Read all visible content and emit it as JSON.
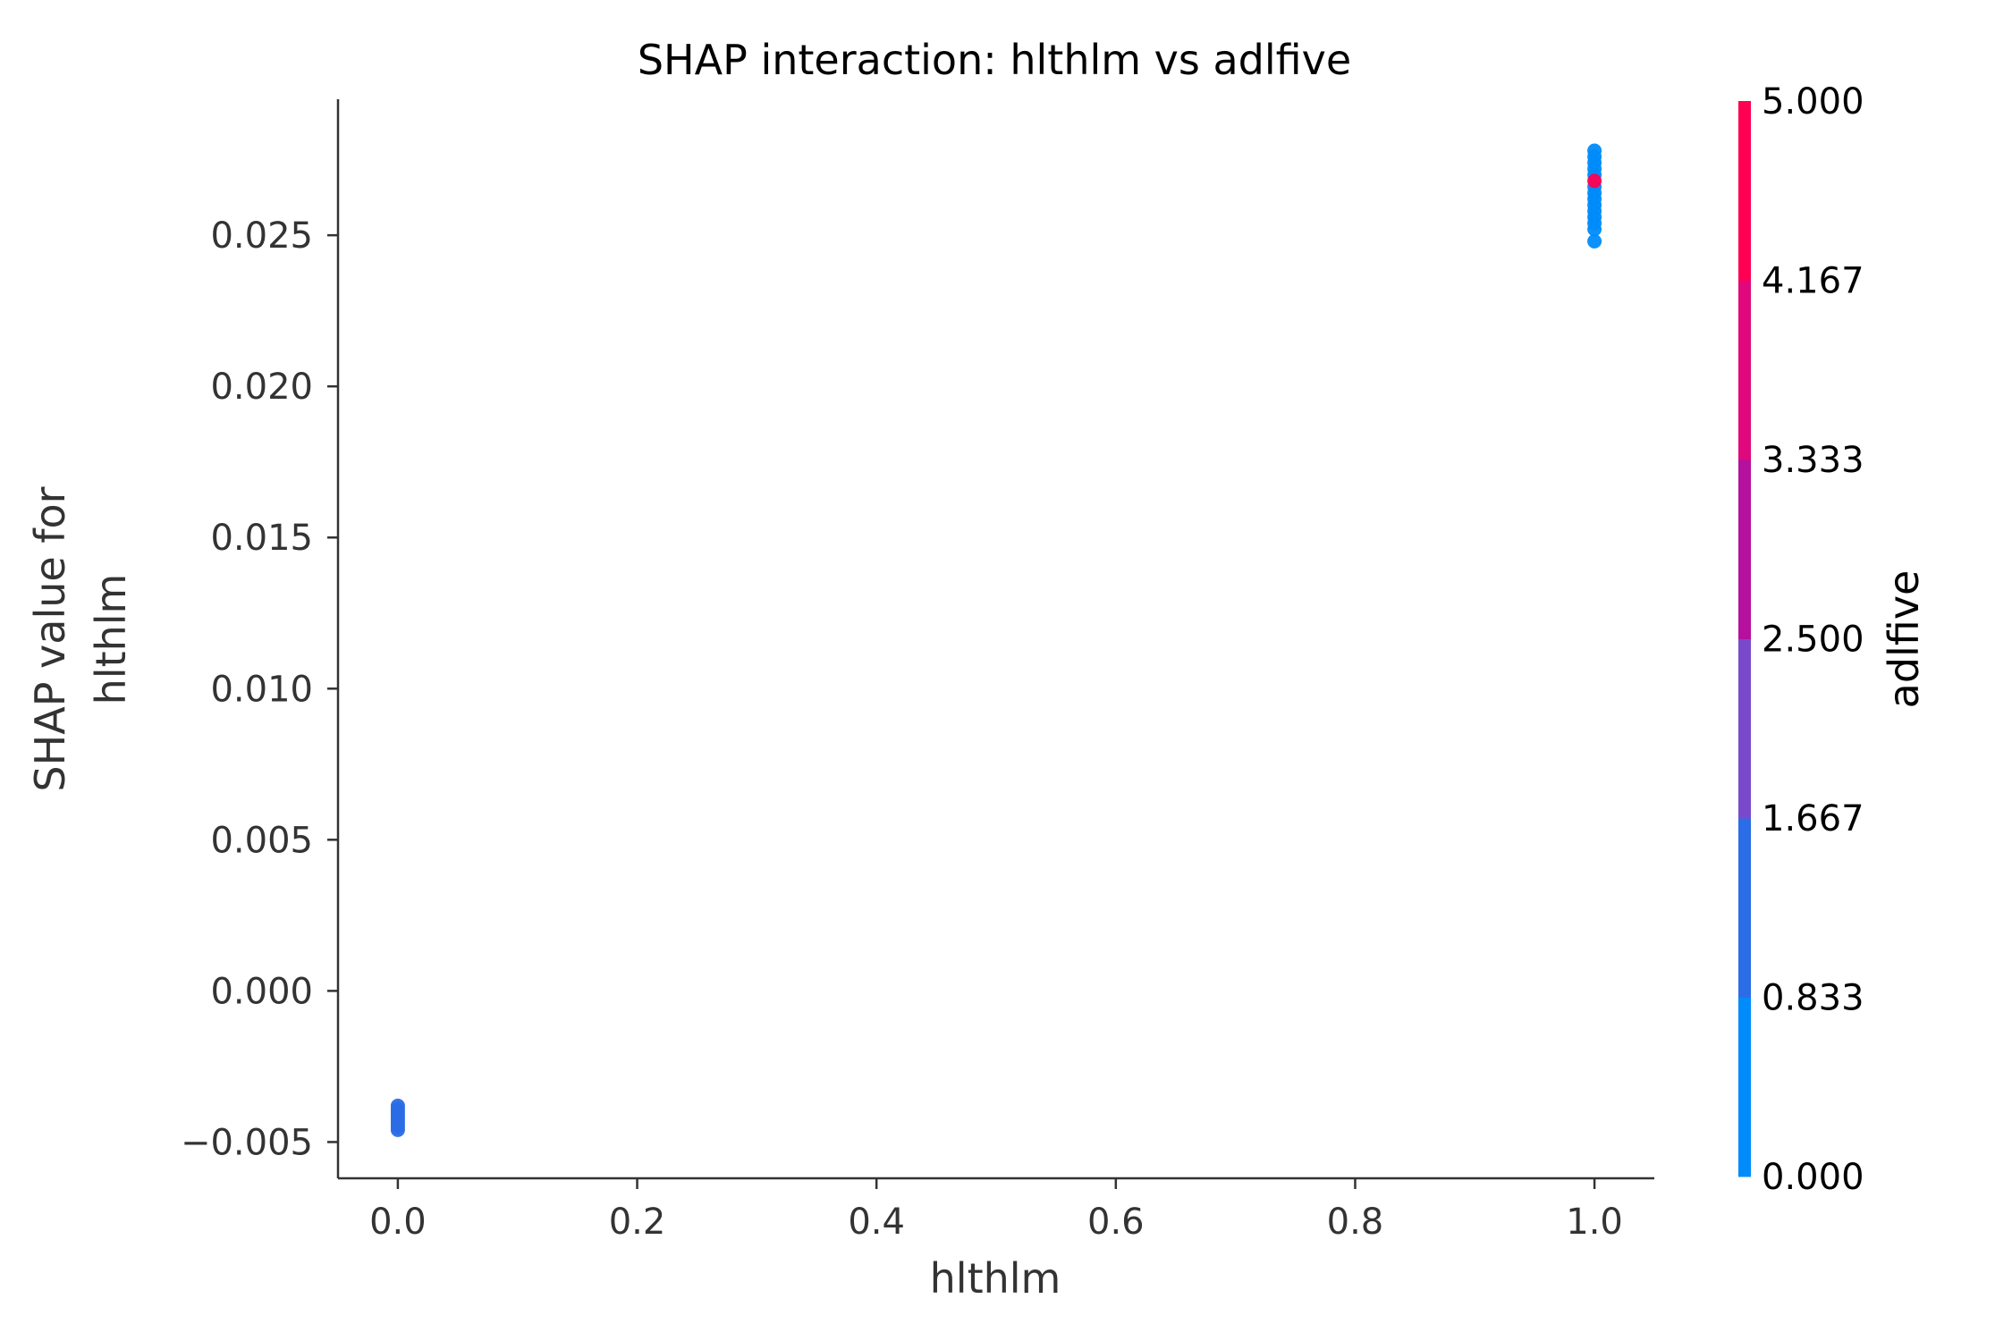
{
  "chart_data": {
    "type": "scatter",
    "title": "SHAP interaction: hlthlm vs adlfive",
    "xlabel": "hlthlm",
    "ylabel_lines": [
      "SHAP value for",
      "hlthlm"
    ],
    "xlim": [
      -0.05,
      1.05
    ],
    "ylim": [
      -0.0062,
      0.0295
    ],
    "xticks": [
      {
        "value": 0.0,
        "label": "0.0"
      },
      {
        "value": 0.2,
        "label": "0.2"
      },
      {
        "value": 0.4,
        "label": "0.4"
      },
      {
        "value": 0.6,
        "label": "0.6"
      },
      {
        "value": 0.8,
        "label": "0.8"
      },
      {
        "value": 1.0,
        "label": "1.0"
      }
    ],
    "yticks": [
      {
        "value": -0.005,
        "label": "−0.005"
      },
      {
        "value": 0.0,
        "label": "0.000"
      },
      {
        "value": 0.005,
        "label": "0.005"
      },
      {
        "value": 0.01,
        "label": "0.010"
      },
      {
        "value": 0.015,
        "label": "0.015"
      },
      {
        "value": 0.02,
        "label": "0.020"
      },
      {
        "value": 0.025,
        "label": "0.025"
      }
    ],
    "grid": false,
    "colorbar": {
      "label": "adlfive",
      "range": [
        0,
        5
      ],
      "ticks": [
        {
          "value": 0.0,
          "label": "0.000"
        },
        {
          "value": 0.833,
          "label": "0.833"
        },
        {
          "value": 1.667,
          "label": "1.667"
        },
        {
          "value": 2.5,
          "label": "2.500"
        },
        {
          "value": 3.333,
          "label": "3.333"
        },
        {
          "value": 4.167,
          "label": "4.167"
        },
        {
          "value": 5.0,
          "label": "5.000"
        }
      ],
      "colors": [
        "#008bfb",
        "#2b6de6",
        "#7a49cb",
        "#b5109e",
        "#e0087c",
        "#ff0052"
      ]
    },
    "points": [
      {
        "x": 0,
        "y": -0.0038,
        "c": 1.0
      },
      {
        "x": 0,
        "y": -0.0039,
        "c": 1.0
      },
      {
        "x": 0,
        "y": -0.004,
        "c": 1.0
      },
      {
        "x": 0,
        "y": -0.0041,
        "c": 1.0
      },
      {
        "x": 0,
        "y": -0.0042,
        "c": 1.0
      },
      {
        "x": 0,
        "y": -0.0043,
        "c": 1.2
      },
      {
        "x": 0,
        "y": -0.0044,
        "c": 1.2
      },
      {
        "x": 0,
        "y": -0.0045,
        "c": 1.2
      },
      {
        "x": 0,
        "y": -0.0046,
        "c": 1.2
      },
      {
        "x": 1,
        "y": 0.0248,
        "c": 0.0
      },
      {
        "x": 1,
        "y": 0.0252,
        "c": 0.0
      },
      {
        "x": 1,
        "y": 0.0254,
        "c": 0.0
      },
      {
        "x": 1,
        "y": 0.0256,
        "c": 0.0
      },
      {
        "x": 1,
        "y": 0.0258,
        "c": 0.0
      },
      {
        "x": 1,
        "y": 0.026,
        "c": 0.0
      },
      {
        "x": 1,
        "y": 0.0262,
        "c": 0.0
      },
      {
        "x": 1,
        "y": 0.0264,
        "c": 0.0
      },
      {
        "x": 1,
        "y": 0.0266,
        "c": 0.0
      },
      {
        "x": 1,
        "y": 0.027,
        "c": 0.0
      },
      {
        "x": 1,
        "y": 0.0272,
        "c": 0.0
      },
      {
        "x": 1,
        "y": 0.0274,
        "c": 0.0
      },
      {
        "x": 1,
        "y": 0.0276,
        "c": 0.0
      },
      {
        "x": 1,
        "y": 0.0278,
        "c": 0.0
      },
      {
        "x": 1,
        "y": 0.0268,
        "c": 4.8
      }
    ]
  }
}
